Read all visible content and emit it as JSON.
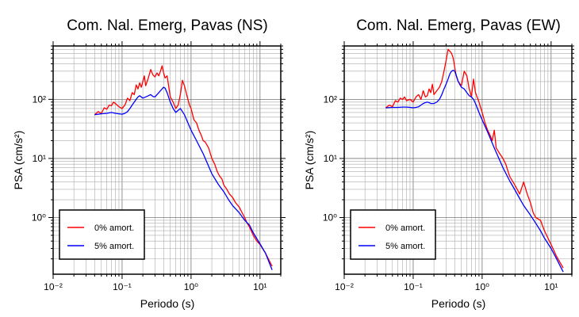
{
  "chart_data": [
    {
      "type": "line",
      "title": "Com. Nal. Emerg, Pavas (NS)",
      "xlabel": "Periodo (s)",
      "ylabel": "PSA (cm/s²)",
      "xscale": "log",
      "yscale": "log",
      "xlim": [
        0.01,
        20
      ],
      "ylim": [
        0.11,
        800
      ],
      "xticks": [
        0.01,
        0.1,
        1,
        10
      ],
      "xtick_labels": [
        "10⁻²",
        "10⁻¹",
        "10⁰",
        "10¹"
      ],
      "yticks": [
        1,
        10,
        100
      ],
      "ytick_labels": [
        "10⁰",
        "10¹",
        "10²"
      ],
      "grid": true,
      "legend_position": "bottom-left",
      "series": [
        {
          "name": "0% amort.",
          "color": "#ff0000",
          "x": [
            0.04,
            0.045,
            0.05,
            0.055,
            0.06,
            0.065,
            0.07,
            0.075,
            0.08,
            0.09,
            0.1,
            0.11,
            0.12,
            0.13,
            0.14,
            0.15,
            0.16,
            0.17,
            0.18,
            0.19,
            0.2,
            0.21,
            0.22,
            0.24,
            0.26,
            0.28,
            0.3,
            0.32,
            0.34,
            0.36,
            0.38,
            0.4,
            0.42,
            0.45,
            0.5,
            0.55,
            0.6,
            0.65,
            0.7,
            0.75,
            0.8,
            0.85,
            0.9,
            0.95,
            1.0,
            1.1,
            1.2,
            1.3,
            1.4,
            1.5,
            1.6,
            1.8,
            2.0,
            2.2,
            2.4,
            2.6,
            2.8,
            3.0,
            3.3,
            3.6,
            4.0,
            4.4,
            5.0,
            5.5,
            6.0,
            6.5,
            7.0,
            8.0,
            9.0,
            10.0,
            12.0,
            15.0
          ],
          "y": [
            55,
            62,
            58,
            72,
            68,
            80,
            78,
            90,
            85,
            75,
            70,
            80,
            105,
            95,
            130,
            120,
            175,
            150,
            190,
            160,
            200,
            250,
            170,
            230,
            320,
            260,
            240,
            280,
            250,
            300,
            370,
            280,
            230,
            250,
            110,
            90,
            70,
            80,
            120,
            210,
            170,
            130,
            100,
            80,
            70,
            45,
            40,
            30,
            25,
            20,
            19,
            15,
            10,
            8,
            6,
            5,
            4.5,
            3.5,
            3.0,
            2.5,
            2.2,
            1.8,
            1.5,
            1.2,
            1.0,
            0.8,
            0.7,
            0.5,
            0.4,
            0.35,
            0.25,
            0.15
          ]
        },
        {
          "name": "5% amort.",
          "color": "#0000ff",
          "x": [
            0.04,
            0.05,
            0.06,
            0.07,
            0.08,
            0.09,
            0.1,
            0.11,
            0.12,
            0.13,
            0.14,
            0.15,
            0.16,
            0.17,
            0.18,
            0.2,
            0.22,
            0.24,
            0.26,
            0.28,
            0.3,
            0.32,
            0.34,
            0.36,
            0.38,
            0.4,
            0.42,
            0.45,
            0.5,
            0.55,
            0.6,
            0.65,
            0.7,
            0.75,
            0.8,
            0.9,
            1.0,
            1.2,
            1.5,
            2.0,
            2.5,
            3.0,
            3.5,
            4.0,
            5.0,
            6.0,
            7.0,
            8.0,
            10.0,
            12.0,
            15.0
          ],
          "y": [
            55,
            57,
            58,
            60,
            58,
            57,
            56,
            58,
            62,
            70,
            80,
            90,
            100,
            110,
            115,
            105,
            110,
            115,
            120,
            112,
            110,
            120,
            130,
            140,
            150,
            160,
            155,
            130,
            90,
            70,
            60,
            65,
            70,
            62,
            55,
            40,
            30,
            20,
            12,
            5.5,
            3.6,
            2.7,
            2.0,
            1.6,
            1.2,
            0.9,
            0.75,
            0.55,
            0.36,
            0.25,
            0.13
          ]
        }
      ]
    },
    {
      "type": "line",
      "title": "Com. Nal. Emerg, Pavas (EW)",
      "xlabel": "Periodo (s)",
      "ylabel": "PSA (cm/s²)",
      "xscale": "log",
      "yscale": "log",
      "xlim": [
        0.01,
        20
      ],
      "ylim": [
        0.11,
        800
      ],
      "xticks": [
        0.01,
        0.1,
        1,
        10
      ],
      "xtick_labels": [
        "10⁻²",
        "10⁻¹",
        "10⁰",
        "10¹"
      ],
      "yticks": [
        1,
        10,
        100
      ],
      "ytick_labels": [
        "10⁰",
        "10¹",
        "10²"
      ],
      "grid": true,
      "legend_position": "bottom-left",
      "series": [
        {
          "name": "0% amort.",
          "color": "#ff0000",
          "x": [
            0.04,
            0.045,
            0.05,
            0.055,
            0.06,
            0.065,
            0.07,
            0.075,
            0.08,
            0.09,
            0.1,
            0.11,
            0.12,
            0.13,
            0.14,
            0.15,
            0.16,
            0.17,
            0.18,
            0.19,
            0.2,
            0.22,
            0.24,
            0.26,
            0.28,
            0.3,
            0.32,
            0.34,
            0.36,
            0.38,
            0.4,
            0.42,
            0.45,
            0.5,
            0.55,
            0.6,
            0.65,
            0.7,
            0.75,
            0.8,
            0.9,
            1.0,
            1.1,
            1.2,
            1.3,
            1.4,
            1.5,
            1.6,
            1.8,
            2.0,
            2.2,
            2.5,
            3.0,
            3.5,
            4.0,
            4.5,
            5.0,
            5.5,
            6.0,
            7.0,
            8.0,
            9.0,
            10.0,
            12.0,
            15.0
          ],
          "y": [
            72,
            80,
            75,
            95,
            90,
            105,
            100,
            110,
            95,
            100,
            90,
            110,
            120,
            100,
            140,
            110,
            115,
            150,
            130,
            180,
            120,
            140,
            160,
            200,
            300,
            450,
            700,
            650,
            600,
            500,
            350,
            250,
            200,
            170,
            300,
            250,
            150,
            110,
            220,
            130,
            90,
            60,
            40,
            30,
            25,
            20,
            30,
            15,
            12,
            10,
            8,
            5,
            3.5,
            2.5,
            4.0,
            2.5,
            1.8,
            1.2,
            1.0,
            0.9,
            0.6,
            0.45,
            0.35,
            0.22,
            0.14
          ]
        },
        {
          "name": "5% amort.",
          "color": "#0000ff",
          "x": [
            0.04,
            0.05,
            0.06,
            0.07,
            0.08,
            0.09,
            0.1,
            0.11,
            0.12,
            0.13,
            0.14,
            0.15,
            0.16,
            0.17,
            0.18,
            0.2,
            0.22,
            0.24,
            0.26,
            0.28,
            0.3,
            0.32,
            0.34,
            0.36,
            0.38,
            0.4,
            0.42,
            0.45,
            0.5,
            0.55,
            0.6,
            0.65,
            0.7,
            0.75,
            0.8,
            0.9,
            1.0,
            1.2,
            1.5,
            2.0,
            2.5,
            3.0,
            3.5,
            4.0,
            5.0,
            6.0,
            7.0,
            8.0,
            10.0,
            12.0,
            15.0
          ],
          "y": [
            72,
            73,
            73,
            74,
            74,
            73,
            72,
            73,
            75,
            80,
            85,
            88,
            90,
            88,
            85,
            85,
            90,
            100,
            120,
            150,
            180,
            220,
            270,
            300,
            310,
            300,
            260,
            200,
            160,
            150,
            130,
            115,
            110,
            100,
            85,
            60,
            45,
            28,
            15,
            7,
            4.2,
            2.9,
            2.1,
            1.6,
            1.1,
            0.8,
            0.6,
            0.45,
            0.3,
            0.2,
            0.12
          ]
        }
      ]
    }
  ]
}
